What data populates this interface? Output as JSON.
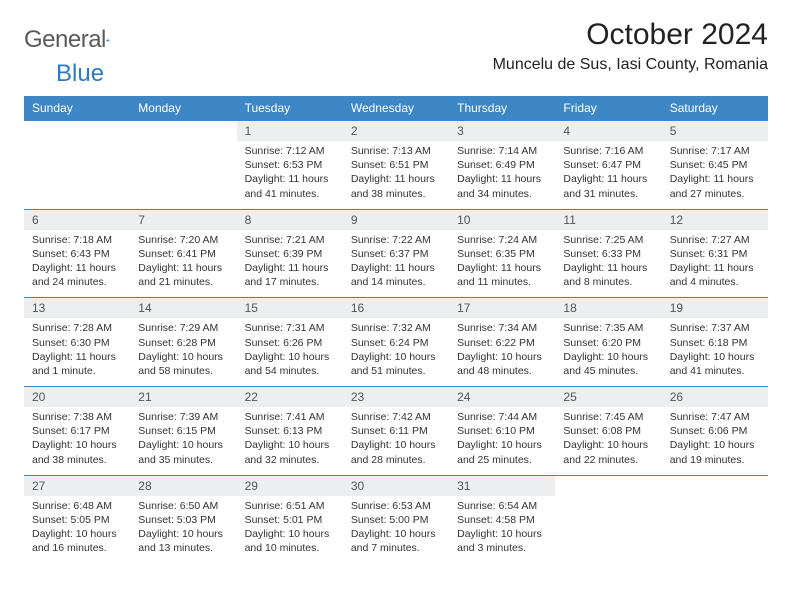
{
  "brand": {
    "word1": "General",
    "word2": "Blue"
  },
  "title": "October 2024",
  "location": "Muncelu de Sus, Iasi County, Romania",
  "colors": {
    "header_bg": "#3d87c7",
    "header_fg": "#ffffff",
    "daynum_bg": "#eceef0"
  },
  "weekdays": [
    "Sunday",
    "Monday",
    "Tuesday",
    "Wednesday",
    "Thursday",
    "Friday",
    "Saturday"
  ],
  "weeks": [
    [
      {
        "n": "",
        "sr": "",
        "ss": "",
        "dl": ""
      },
      {
        "n": "",
        "sr": "",
        "ss": "",
        "dl": ""
      },
      {
        "n": "1",
        "sr": "Sunrise: 7:12 AM",
        "ss": "Sunset: 6:53 PM",
        "dl": "Daylight: 11 hours and 41 minutes."
      },
      {
        "n": "2",
        "sr": "Sunrise: 7:13 AM",
        "ss": "Sunset: 6:51 PM",
        "dl": "Daylight: 11 hours and 38 minutes."
      },
      {
        "n": "3",
        "sr": "Sunrise: 7:14 AM",
        "ss": "Sunset: 6:49 PM",
        "dl": "Daylight: 11 hours and 34 minutes."
      },
      {
        "n": "4",
        "sr": "Sunrise: 7:16 AM",
        "ss": "Sunset: 6:47 PM",
        "dl": "Daylight: 11 hours and 31 minutes."
      },
      {
        "n": "5",
        "sr": "Sunrise: 7:17 AM",
        "ss": "Sunset: 6:45 PM",
        "dl": "Daylight: 11 hours and 27 minutes."
      }
    ],
    [
      {
        "n": "6",
        "sr": "Sunrise: 7:18 AM",
        "ss": "Sunset: 6:43 PM",
        "dl": "Daylight: 11 hours and 24 minutes."
      },
      {
        "n": "7",
        "sr": "Sunrise: 7:20 AM",
        "ss": "Sunset: 6:41 PM",
        "dl": "Daylight: 11 hours and 21 minutes."
      },
      {
        "n": "8",
        "sr": "Sunrise: 7:21 AM",
        "ss": "Sunset: 6:39 PM",
        "dl": "Daylight: 11 hours and 17 minutes."
      },
      {
        "n": "9",
        "sr": "Sunrise: 7:22 AM",
        "ss": "Sunset: 6:37 PM",
        "dl": "Daylight: 11 hours and 14 minutes."
      },
      {
        "n": "10",
        "sr": "Sunrise: 7:24 AM",
        "ss": "Sunset: 6:35 PM",
        "dl": "Daylight: 11 hours and 11 minutes."
      },
      {
        "n": "11",
        "sr": "Sunrise: 7:25 AM",
        "ss": "Sunset: 6:33 PM",
        "dl": "Daylight: 11 hours and 8 minutes."
      },
      {
        "n": "12",
        "sr": "Sunrise: 7:27 AM",
        "ss": "Sunset: 6:31 PM",
        "dl": "Daylight: 11 hours and 4 minutes."
      }
    ],
    [
      {
        "n": "13",
        "sr": "Sunrise: 7:28 AM",
        "ss": "Sunset: 6:30 PM",
        "dl": "Daylight: 11 hours and 1 minute."
      },
      {
        "n": "14",
        "sr": "Sunrise: 7:29 AM",
        "ss": "Sunset: 6:28 PM",
        "dl": "Daylight: 10 hours and 58 minutes."
      },
      {
        "n": "15",
        "sr": "Sunrise: 7:31 AM",
        "ss": "Sunset: 6:26 PM",
        "dl": "Daylight: 10 hours and 54 minutes."
      },
      {
        "n": "16",
        "sr": "Sunrise: 7:32 AM",
        "ss": "Sunset: 6:24 PM",
        "dl": "Daylight: 10 hours and 51 minutes."
      },
      {
        "n": "17",
        "sr": "Sunrise: 7:34 AM",
        "ss": "Sunset: 6:22 PM",
        "dl": "Daylight: 10 hours and 48 minutes."
      },
      {
        "n": "18",
        "sr": "Sunrise: 7:35 AM",
        "ss": "Sunset: 6:20 PM",
        "dl": "Daylight: 10 hours and 45 minutes."
      },
      {
        "n": "19",
        "sr": "Sunrise: 7:37 AM",
        "ss": "Sunset: 6:18 PM",
        "dl": "Daylight: 10 hours and 41 minutes."
      }
    ],
    [
      {
        "n": "20",
        "sr": "Sunrise: 7:38 AM",
        "ss": "Sunset: 6:17 PM",
        "dl": "Daylight: 10 hours and 38 minutes."
      },
      {
        "n": "21",
        "sr": "Sunrise: 7:39 AM",
        "ss": "Sunset: 6:15 PM",
        "dl": "Daylight: 10 hours and 35 minutes."
      },
      {
        "n": "22",
        "sr": "Sunrise: 7:41 AM",
        "ss": "Sunset: 6:13 PM",
        "dl": "Daylight: 10 hours and 32 minutes."
      },
      {
        "n": "23",
        "sr": "Sunrise: 7:42 AM",
        "ss": "Sunset: 6:11 PM",
        "dl": "Daylight: 10 hours and 28 minutes."
      },
      {
        "n": "24",
        "sr": "Sunrise: 7:44 AM",
        "ss": "Sunset: 6:10 PM",
        "dl": "Daylight: 10 hours and 25 minutes."
      },
      {
        "n": "25",
        "sr": "Sunrise: 7:45 AM",
        "ss": "Sunset: 6:08 PM",
        "dl": "Daylight: 10 hours and 22 minutes."
      },
      {
        "n": "26",
        "sr": "Sunrise: 7:47 AM",
        "ss": "Sunset: 6:06 PM",
        "dl": "Daylight: 10 hours and 19 minutes."
      }
    ],
    [
      {
        "n": "27",
        "sr": "Sunrise: 6:48 AM",
        "ss": "Sunset: 5:05 PM",
        "dl": "Daylight: 10 hours and 16 minutes."
      },
      {
        "n": "28",
        "sr": "Sunrise: 6:50 AM",
        "ss": "Sunset: 5:03 PM",
        "dl": "Daylight: 10 hours and 13 minutes."
      },
      {
        "n": "29",
        "sr": "Sunrise: 6:51 AM",
        "ss": "Sunset: 5:01 PM",
        "dl": "Daylight: 10 hours and 10 minutes."
      },
      {
        "n": "30",
        "sr": "Sunrise: 6:53 AM",
        "ss": "Sunset: 5:00 PM",
        "dl": "Daylight: 10 hours and 7 minutes."
      },
      {
        "n": "31",
        "sr": "Sunrise: 6:54 AM",
        "ss": "Sunset: 4:58 PM",
        "dl": "Daylight: 10 hours and 3 minutes."
      },
      {
        "n": "",
        "sr": "",
        "ss": "",
        "dl": ""
      },
      {
        "n": "",
        "sr": "",
        "ss": "",
        "dl": ""
      }
    ]
  ]
}
